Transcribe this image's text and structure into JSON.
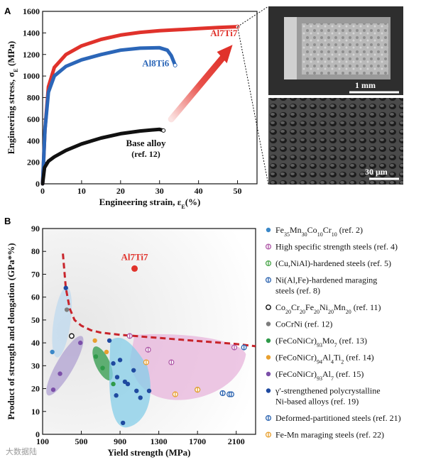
{
  "chart_data": [
    {
      "panel": "A",
      "type": "line",
      "title": "",
      "xlabel": "Engineering strain, ε",
      "xlabel_sub": "E",
      "xlabel_unit": "(%)",
      "ylabel": "Engineering stress, σ",
      "ylabel_sub": "E",
      "ylabel_unit": " (MPa)",
      "xlim": [
        0,
        55
      ],
      "ylim": [
        0,
        1600
      ],
      "xticks": [
        0,
        10,
        20,
        30,
        40,
        50
      ],
      "yticks": [
        0,
        200,
        400,
        600,
        800,
        1000,
        1200,
        1400,
        1600
      ],
      "grid": false,
      "series": [
        {
          "name": "Al7Ti7",
          "color": "#e0322b",
          "x": [
            0,
            0.6,
            1.5,
            3,
            6,
            10,
            15,
            20,
            25,
            30,
            35,
            40,
            45,
            50
          ],
          "y": [
            0,
            500,
            900,
            1080,
            1200,
            1280,
            1340,
            1380,
            1405,
            1420,
            1430,
            1440,
            1450,
            1458
          ]
        },
        {
          "name": "Al8Ti6",
          "color": "#2b66b8",
          "x": [
            0,
            0.6,
            1.5,
            3,
            6,
            10,
            15,
            20,
            25,
            30,
            32,
            33,
            34
          ],
          "y": [
            0,
            500,
            850,
            1000,
            1090,
            1150,
            1200,
            1240,
            1258,
            1262,
            1240,
            1190,
            1100
          ]
        },
        {
          "name": "Base alloy",
          "note": "(ref. 12)",
          "color": "#111111",
          "x": [
            0,
            0.5,
            1.5,
            3,
            6,
            10,
            15,
            20,
            25,
            28,
            30,
            31
          ],
          "y": [
            0,
            150,
            210,
            250,
            310,
            370,
            425,
            465,
            490,
            500,
            505,
            495
          ]
        }
      ],
      "annotations": [
        "Al7Ti7",
        "Al8Ti6",
        "Base alloy",
        "(ref. 12)"
      ],
      "inset_scale_labels": [
        "1 mm",
        "30 μm"
      ]
    },
    {
      "panel": "B",
      "type": "scatter",
      "title": "",
      "xlabel": "Yield strength (MPa)",
      "ylabel": "Product of strength and elongation (GPa*%)",
      "xlim": [
        100,
        2300
      ],
      "ylim": [
        0,
        90
      ],
      "xticks": [
        100,
        500,
        900,
        1300,
        1700,
        2100
      ],
      "yticks": [
        0,
        10,
        20,
        30,
        40,
        50,
        60,
        70,
        80,
        90
      ],
      "grid": false,
      "highlight": {
        "label": "Al7Ti7",
        "x": 1050,
        "y": 72.5,
        "color": "#e0322b"
      },
      "boundary_x": [
        310,
        340,
        380,
        430,
        500,
        600,
        700,
        800,
        900,
        1000,
        1200,
        1500,
        1800,
        2100,
        2300
      ],
      "boundary_y": [
        79,
        64,
        55,
        50,
        47.5,
        45.5,
        44.5,
        44,
        43.5,
        43.2,
        42.5,
        41.5,
        40.5,
        39.5,
        38.5
      ],
      "series": [
        {
          "name": "Fe₃₅Mn₃₀Co₁₀Cr₁₀ (ref. 2)",
          "marker": "filled",
          "color": "#3b88c8",
          "x": [
            200
          ],
          "y": [
            36
          ]
        },
        {
          "name": "High specific strength steels (ref. 4)",
          "marker": "barred",
          "color": "#b05aa8",
          "x": [
            1000,
            1190,
            1430,
            2080
          ],
          "y": [
            43,
            37,
            31.5,
            38
          ]
        },
        {
          "name": "(Cu,NiAl)-hardened steels (ref. 5)",
          "marker": "barred",
          "color": "#4aa54a",
          "x": [
            1700
          ],
          "y": [
            19.5
          ]
        },
        {
          "name": "Ni(Al,Fe)-hardened maraging steels (ref. 8)",
          "marker": "barred",
          "color": "#2c64b0",
          "x": [
            1960,
            2030,
            2180
          ],
          "y": [
            18,
            17.5,
            38
          ]
        },
        {
          "name": "Co₂₀Cr₂₀Fe₂₀Ni₂₀Mn₂₀ (ref. 11)",
          "marker": "open",
          "color": "#111111",
          "x": [
            400
          ],
          "y": [
            43
          ]
        },
        {
          "name": "CoCrNi (ref. 12)",
          "marker": "filled",
          "color": "#7d7d7d",
          "x": [
            350
          ],
          "y": [
            54.5
          ]
        },
        {
          "name": "(FeCoNiCr)₉₃Mo₇ (ref. 13)",
          "marker": "filled",
          "color": "#2f9a4a",
          "x": [
            650,
            720,
            830
          ],
          "y": [
            34,
            29,
            22
          ]
        },
        {
          "name": "(FeCoNiCr)₉₄Al₄Ti₂ (ref. 14)",
          "marker": "filled",
          "color": "#e8a030",
          "x": [
            640,
            760
          ],
          "y": [
            41,
            36
          ]
        },
        {
          "name": "(FeCoNiCr)₉₃Al₇ (ref. 15)",
          "marker": "filled",
          "color": "#7b4fa8",
          "x": [
            210,
            280,
            490
          ],
          "y": [
            19.5,
            26.5,
            40
          ]
        },
        {
          "name": "γ′-strengthened polycrystalline Ni-based alloys (ref. 19)",
          "marker": "filled",
          "color": "#1f4aa0",
          "x": [
            340,
            790,
            830,
            860,
            870,
            900,
            930,
            950,
            980,
            1040,
            1070,
            1110,
            1200
          ],
          "y": [
            64,
            41,
            31,
            17,
            25,
            32.5,
            5,
            23,
            22,
            28,
            19,
            16,
            19
          ]
        },
        {
          "name": "Deformed-partitioned steels (ref. 21)",
          "marker": "barred",
          "color": "#2c64b0",
          "x": [
            1960,
            2050
          ],
          "y": [
            18,
            17.5
          ]
        },
        {
          "name": "Fe-Mn maraging steels (ref. 22)",
          "marker": "barred",
          "color": "#e8a030",
          "x": [
            1170,
            1470,
            1700
          ],
          "y": [
            31.5,
            17.5,
            19.5
          ]
        }
      ],
      "legend": [
        {
          "marker": "filled",
          "color": "#3b88c8",
          "parts": [
            [
              "Fe",
              ""
            ],
            [
              "35",
              "sub"
            ],
            [
              "Mn",
              ""
            ],
            [
              "30",
              "sub"
            ],
            [
              "Co",
              ""
            ],
            [
              "10",
              "sub"
            ],
            [
              "Cr",
              ""
            ],
            [
              "10",
              "sub"
            ],
            [
              " (ref. 2)",
              ""
            ]
          ]
        },
        {
          "marker": "barred",
          "color": "#b05aa8",
          "parts": [
            [
              "High specific strength steels (ref. 4)",
              ""
            ]
          ]
        },
        {
          "marker": "barred",
          "color": "#4aa54a",
          "parts": [
            [
              "(Cu,NiAl)-hardened steels (ref. 5)",
              ""
            ]
          ]
        },
        {
          "marker": "barred",
          "color": "#2c64b0",
          "parts": [
            [
              "Ni(Al,Fe)-hardened maraging",
              ""
            ]
          ],
          "line2": "steels (ref. 8)"
        },
        {
          "marker": "open",
          "color": "#111111",
          "parts": [
            [
              "Co",
              ""
            ],
            [
              "20",
              "sub"
            ],
            [
              "Cr",
              ""
            ],
            [
              "20",
              "sub"
            ],
            [
              "Fe",
              ""
            ],
            [
              "20",
              "sub"
            ],
            [
              "Ni",
              ""
            ],
            [
              "20",
              "sub"
            ],
            [
              "Mn",
              ""
            ],
            [
              "20",
              "sub"
            ],
            [
              " (ref. 11)",
              ""
            ]
          ]
        },
        {
          "marker": "filled",
          "color": "#7d7d7d",
          "parts": [
            [
              "CoCrNi (ref. 12)",
              ""
            ]
          ]
        },
        {
          "marker": "filled",
          "color": "#2f9a4a",
          "parts": [
            [
              "(FeCoNiCr)",
              ""
            ],
            [
              "93",
              "sub"
            ],
            [
              "Mo",
              ""
            ],
            [
              "7",
              "sub"
            ],
            [
              " (ref. 13)",
              ""
            ]
          ]
        },
        {
          "marker": "filled",
          "color": "#e8a030",
          "parts": [
            [
              "(FeCoNiCr)",
              ""
            ],
            [
              "94",
              "sub"
            ],
            [
              "Al",
              ""
            ],
            [
              "4",
              "sub"
            ],
            [
              "Ti",
              ""
            ],
            [
              "2",
              "sub"
            ],
            [
              " (ref. 14)",
              ""
            ]
          ]
        },
        {
          "marker": "filled",
          "color": "#7b4fa8",
          "parts": [
            [
              "(FeCoNiCr)",
              ""
            ],
            [
              "93",
              "sub"
            ],
            [
              "Al",
              ""
            ],
            [
              "7",
              "sub"
            ],
            [
              " (ref. 15)",
              ""
            ]
          ]
        },
        {
          "marker": "filled",
          "color": "#1f4aa0",
          "parts": [
            [
              "γ′-strengthened polycrystalline",
              ""
            ]
          ],
          "line2": "Ni-based alloys (ref. 19)"
        },
        {
          "marker": "barred",
          "color": "#2c64b0",
          "parts": [
            [
              "Deformed-partitioned steels (ref. 21)",
              ""
            ]
          ]
        },
        {
          "marker": "barred",
          "color": "#e8a030",
          "parts": [
            [
              "Fe-Mn maraging steels (ref. 22)",
              ""
            ]
          ]
        }
      ]
    }
  ],
  "panels": {
    "a": "A",
    "b": "B"
  },
  "watermark": "大数据陆"
}
